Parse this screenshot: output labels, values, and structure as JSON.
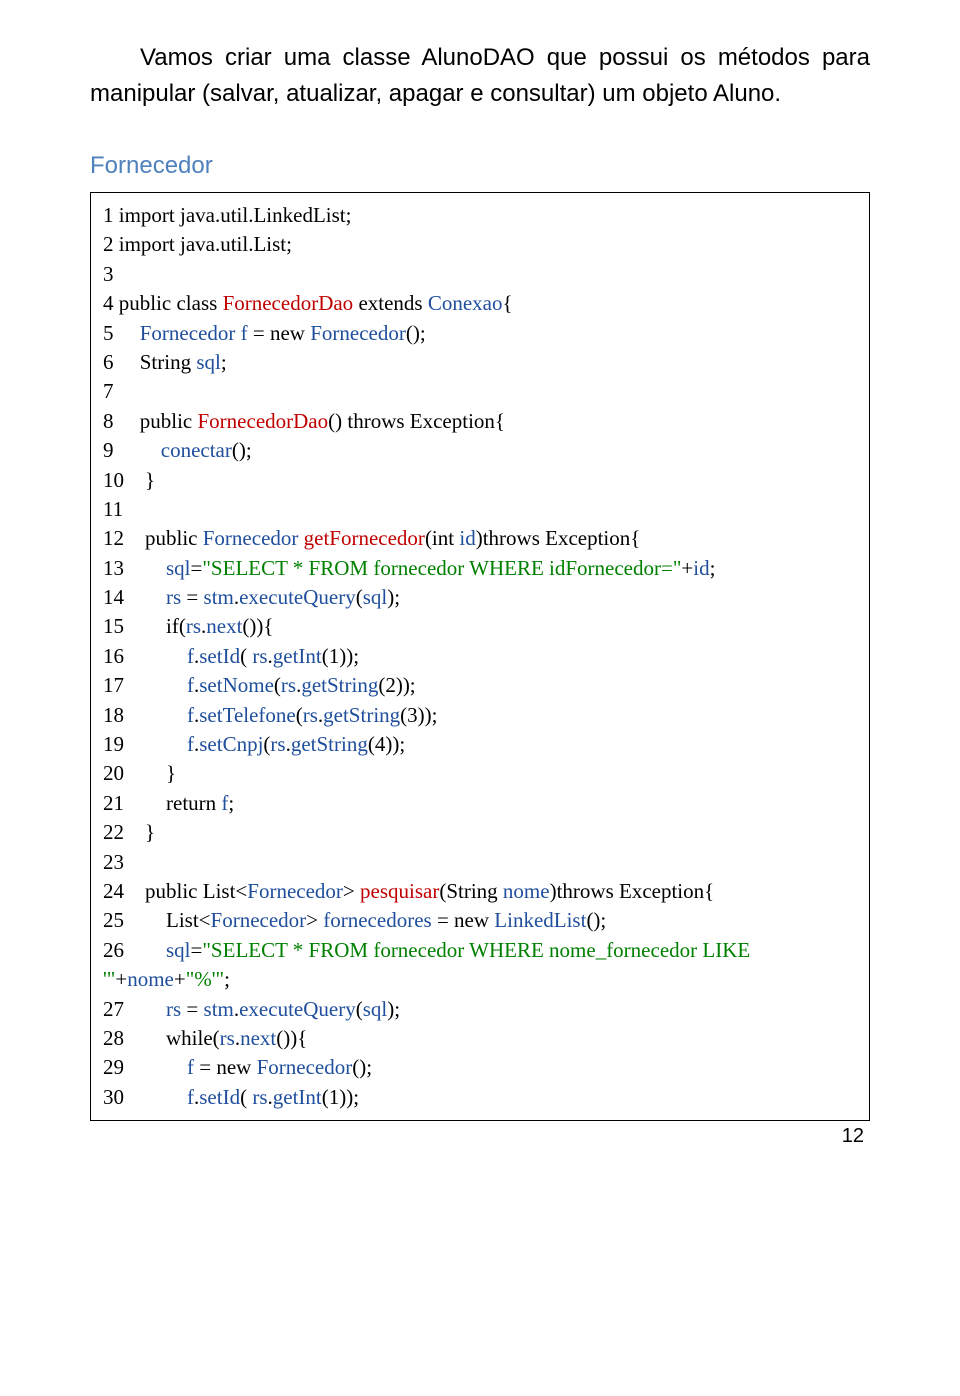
{
  "intro": {
    "text": "Vamos criar uma classe AlunoDAO que possui os métodos para manipular (salvar, atualizar, apagar e consultar) um objeto Aluno."
  },
  "heading": {
    "text": "Fornecedor",
    "color": "#4f81bd"
  },
  "colors": {
    "blue": "#1f4e9c",
    "red": "#c00000",
    "green": "#008000",
    "black": "#000000"
  },
  "code": {
    "lines": [
      [
        [
          "black",
          "1 import java.util.LinkedList;"
        ]
      ],
      [
        [
          "black",
          "2 import java.util.List;"
        ]
      ],
      [
        [
          "black",
          "3"
        ]
      ],
      [
        [
          "black",
          "4 public class "
        ],
        [
          "red",
          "FornecedorDao"
        ],
        [
          "black",
          " extends "
        ],
        [
          "blue",
          "Conexao"
        ],
        [
          "black",
          "{"
        ]
      ],
      [
        [
          "black",
          "5     "
        ],
        [
          "blue",
          "Fornecedor f"
        ],
        [
          "black",
          " = new "
        ],
        [
          "blue",
          "Fornecedor"
        ],
        [
          "black",
          "();"
        ]
      ],
      [
        [
          "black",
          "6     String "
        ],
        [
          "blue",
          "sql"
        ],
        [
          "black",
          ";"
        ]
      ],
      [
        [
          "black",
          "7"
        ]
      ],
      [
        [
          "black",
          "8     public "
        ],
        [
          "red",
          "FornecedorDao"
        ],
        [
          "black",
          "() throws Exception{"
        ]
      ],
      [
        [
          "black",
          "9         "
        ],
        [
          "blue",
          "conectar"
        ],
        [
          "black",
          "();"
        ]
      ],
      [
        [
          "black",
          "10    }"
        ]
      ],
      [
        [
          "black",
          "11"
        ]
      ],
      [
        [
          "black",
          "12    public "
        ],
        [
          "blue",
          "Fornecedor"
        ],
        [
          "black",
          " "
        ],
        [
          "red",
          "getFornecedor"
        ],
        [
          "black",
          "(int "
        ],
        [
          "blue",
          "id"
        ],
        [
          "black",
          ")throws Exception{"
        ]
      ],
      [
        [
          "black",
          "13        "
        ],
        [
          "blue",
          "sql"
        ],
        [
          "black",
          "="
        ],
        [
          "green",
          "\"SELECT * FROM fornecedor WHERE idFornecedor=\""
        ],
        [
          "black",
          "+"
        ],
        [
          "blue",
          "id"
        ],
        [
          "black",
          ";"
        ]
      ],
      [
        [
          "black",
          "14        "
        ],
        [
          "blue",
          "rs"
        ],
        [
          "black",
          " = "
        ],
        [
          "blue",
          "stm"
        ],
        [
          "black",
          "."
        ],
        [
          "blue",
          "executeQuery"
        ],
        [
          "black",
          "("
        ],
        [
          "blue",
          "sql"
        ],
        [
          "black",
          ");"
        ]
      ],
      [
        [
          "black",
          "15        if("
        ],
        [
          "blue",
          "rs"
        ],
        [
          "black",
          "."
        ],
        [
          "blue",
          "next"
        ],
        [
          "black",
          "()){"
        ]
      ],
      [
        [
          "black",
          "16            "
        ],
        [
          "blue",
          "f"
        ],
        [
          "black",
          "."
        ],
        [
          "blue",
          "setId"
        ],
        [
          "black",
          "( "
        ],
        [
          "blue",
          "rs"
        ],
        [
          "black",
          "."
        ],
        [
          "blue",
          "getInt"
        ],
        [
          "black",
          "(1));"
        ]
      ],
      [
        [
          "black",
          "17            "
        ],
        [
          "blue",
          "f"
        ],
        [
          "black",
          "."
        ],
        [
          "blue",
          "setNome"
        ],
        [
          "black",
          "("
        ],
        [
          "blue",
          "rs"
        ],
        [
          "black",
          "."
        ],
        [
          "blue",
          "getString"
        ],
        [
          "black",
          "(2));"
        ]
      ],
      [
        [
          "black",
          "18            "
        ],
        [
          "blue",
          "f"
        ],
        [
          "black",
          "."
        ],
        [
          "blue",
          "setTelefone"
        ],
        [
          "black",
          "("
        ],
        [
          "blue",
          "rs"
        ],
        [
          "black",
          "."
        ],
        [
          "blue",
          "getString"
        ],
        [
          "black",
          "(3));"
        ]
      ],
      [
        [
          "black",
          "19            "
        ],
        [
          "blue",
          "f"
        ],
        [
          "black",
          "."
        ],
        [
          "blue",
          "setCnpj"
        ],
        [
          "black",
          "("
        ],
        [
          "blue",
          "rs"
        ],
        [
          "black",
          "."
        ],
        [
          "blue",
          "getString"
        ],
        [
          "black",
          "(4));"
        ]
      ],
      [
        [
          "black",
          "20        }"
        ]
      ],
      [
        [
          "black",
          "21        return "
        ],
        [
          "blue",
          "f"
        ],
        [
          "black",
          ";"
        ]
      ],
      [
        [
          "black",
          "22    }"
        ]
      ],
      [
        [
          "black",
          "23"
        ]
      ],
      [
        [
          "black",
          "24    public List<"
        ],
        [
          "blue",
          "Fornecedor"
        ],
        [
          "black",
          "> "
        ],
        [
          "red",
          "pesquisar"
        ],
        [
          "black",
          "(String "
        ],
        [
          "blue",
          "nome"
        ],
        [
          "black",
          ")throws Exception{"
        ]
      ],
      [
        [
          "black",
          "25        List<"
        ],
        [
          "blue",
          "Fornecedor"
        ],
        [
          "black",
          "> "
        ],
        [
          "blue",
          "fornecedores"
        ],
        [
          "black",
          " = new "
        ],
        [
          "blue",
          "LinkedList"
        ],
        [
          "black",
          "();"
        ]
      ],
      [
        [
          "black",
          "26        "
        ],
        [
          "blue",
          "sql"
        ],
        [
          "black",
          "="
        ],
        [
          "green",
          "\"SELECT * FROM fornecedor WHERE nome_fornecedor LIKE"
        ]
      ],
      [
        [
          "green",
          "'\""
        ],
        [
          "black",
          "+"
        ],
        [
          "blue",
          "nome"
        ],
        [
          "black",
          "+"
        ],
        [
          "green",
          "\"%'\""
        ],
        [
          "black",
          ";"
        ]
      ],
      [
        [
          "black",
          "27        "
        ],
        [
          "blue",
          "rs"
        ],
        [
          "black",
          " = "
        ],
        [
          "blue",
          "stm"
        ],
        [
          "black",
          "."
        ],
        [
          "blue",
          "executeQuery"
        ],
        [
          "black",
          "("
        ],
        [
          "blue",
          "sql"
        ],
        [
          "black",
          ");"
        ]
      ],
      [
        [
          "black",
          "28        while("
        ],
        [
          "blue",
          "rs"
        ],
        [
          "black",
          "."
        ],
        [
          "blue",
          "next"
        ],
        [
          "black",
          "()){"
        ]
      ],
      [
        [
          "black",
          "29            "
        ],
        [
          "blue",
          "f"
        ],
        [
          "black",
          " = new "
        ],
        [
          "blue",
          "Fornecedor"
        ],
        [
          "black",
          "();"
        ]
      ],
      [
        [
          "black",
          "30            "
        ],
        [
          "blue",
          "f"
        ],
        [
          "black",
          "."
        ],
        [
          "blue",
          "setId"
        ],
        [
          "black",
          "( "
        ],
        [
          "blue",
          "rs"
        ],
        [
          "black",
          "."
        ],
        [
          "blue",
          "getInt"
        ],
        [
          "black",
          "(1));"
        ]
      ]
    ]
  },
  "pageNumber": "12"
}
